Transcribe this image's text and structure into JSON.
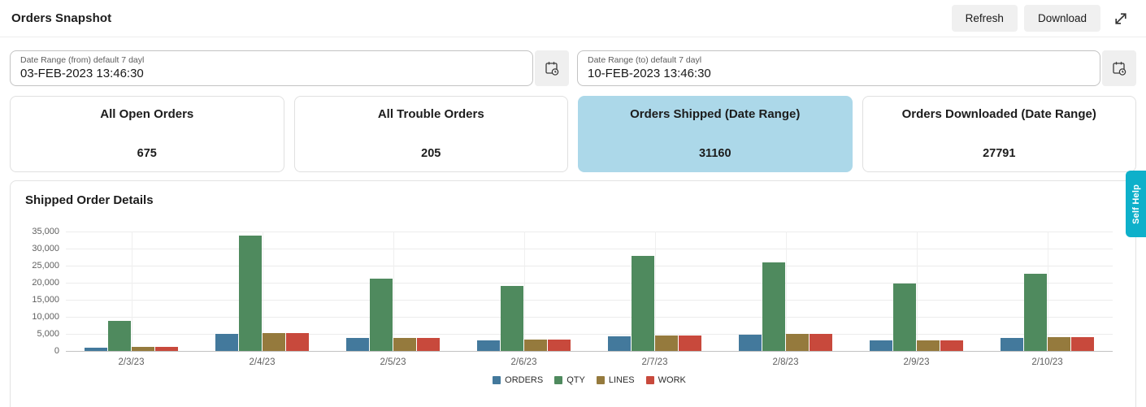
{
  "header": {
    "title": "Orders Snapshot",
    "buttons": {
      "refresh": "Refresh",
      "download": "Download"
    }
  },
  "filters": {
    "from": {
      "label": "Date Range (from) default 7 dayl",
      "value": "03-FEB-2023 13:46:30"
    },
    "to": {
      "label": "Date Range (to) default 7 dayl",
      "value": "10-FEB-2023 13:46:30"
    }
  },
  "summary_cards": [
    {
      "title": "All Open Orders",
      "value": "675",
      "selected": false
    },
    {
      "title": "All Trouble Orders",
      "value": "205",
      "selected": false
    },
    {
      "title": "Orders Shipped (Date Range)",
      "value": "31160",
      "selected": true
    },
    {
      "title": "Orders Downloaded (Date Range)",
      "value": "27791",
      "selected": false
    }
  ],
  "chart_panel": {
    "title": "Shipped Order Details"
  },
  "chart_data": {
    "type": "bar",
    "title": "Shipped Order Details",
    "categories": [
      "2/3/23",
      "2/4/23",
      "2/5/23",
      "2/6/23",
      "2/7/23",
      "2/8/23",
      "2/9/23",
      "2/10/23"
    ],
    "series": [
      {
        "name": "ORDERS",
        "color": "#43799c",
        "values": [
          1000,
          5100,
          3700,
          3200,
          4400,
          4700,
          3000,
          3800
        ]
      },
      {
        "name": "QTY",
        "color": "#4f8a5e",
        "values": [
          8800,
          33800,
          21300,
          19100,
          27900,
          25900,
          19800,
          22700
        ]
      },
      {
        "name": "LINES",
        "color": "#957a3d",
        "values": [
          1100,
          5200,
          3800,
          3350,
          4550,
          4900,
          3150,
          4000
        ]
      },
      {
        "name": "WORK",
        "color": "#c8493c",
        "values": [
          1200,
          5300,
          3900,
          3400,
          4600,
          4900,
          3200,
          4100
        ]
      }
    ],
    "ylim": [
      0,
      35000
    ],
    "ytick_step": 5000,
    "grid": true,
    "legend_position": "bottom",
    "xlabel": "",
    "ylabel": ""
  },
  "self_help": {
    "label": "Self Help"
  },
  "colors": {
    "selected_card_bg": "#acd8e9",
    "accent_cyan": "#0eb0ca",
    "button_bg": "#f0f0f0"
  }
}
